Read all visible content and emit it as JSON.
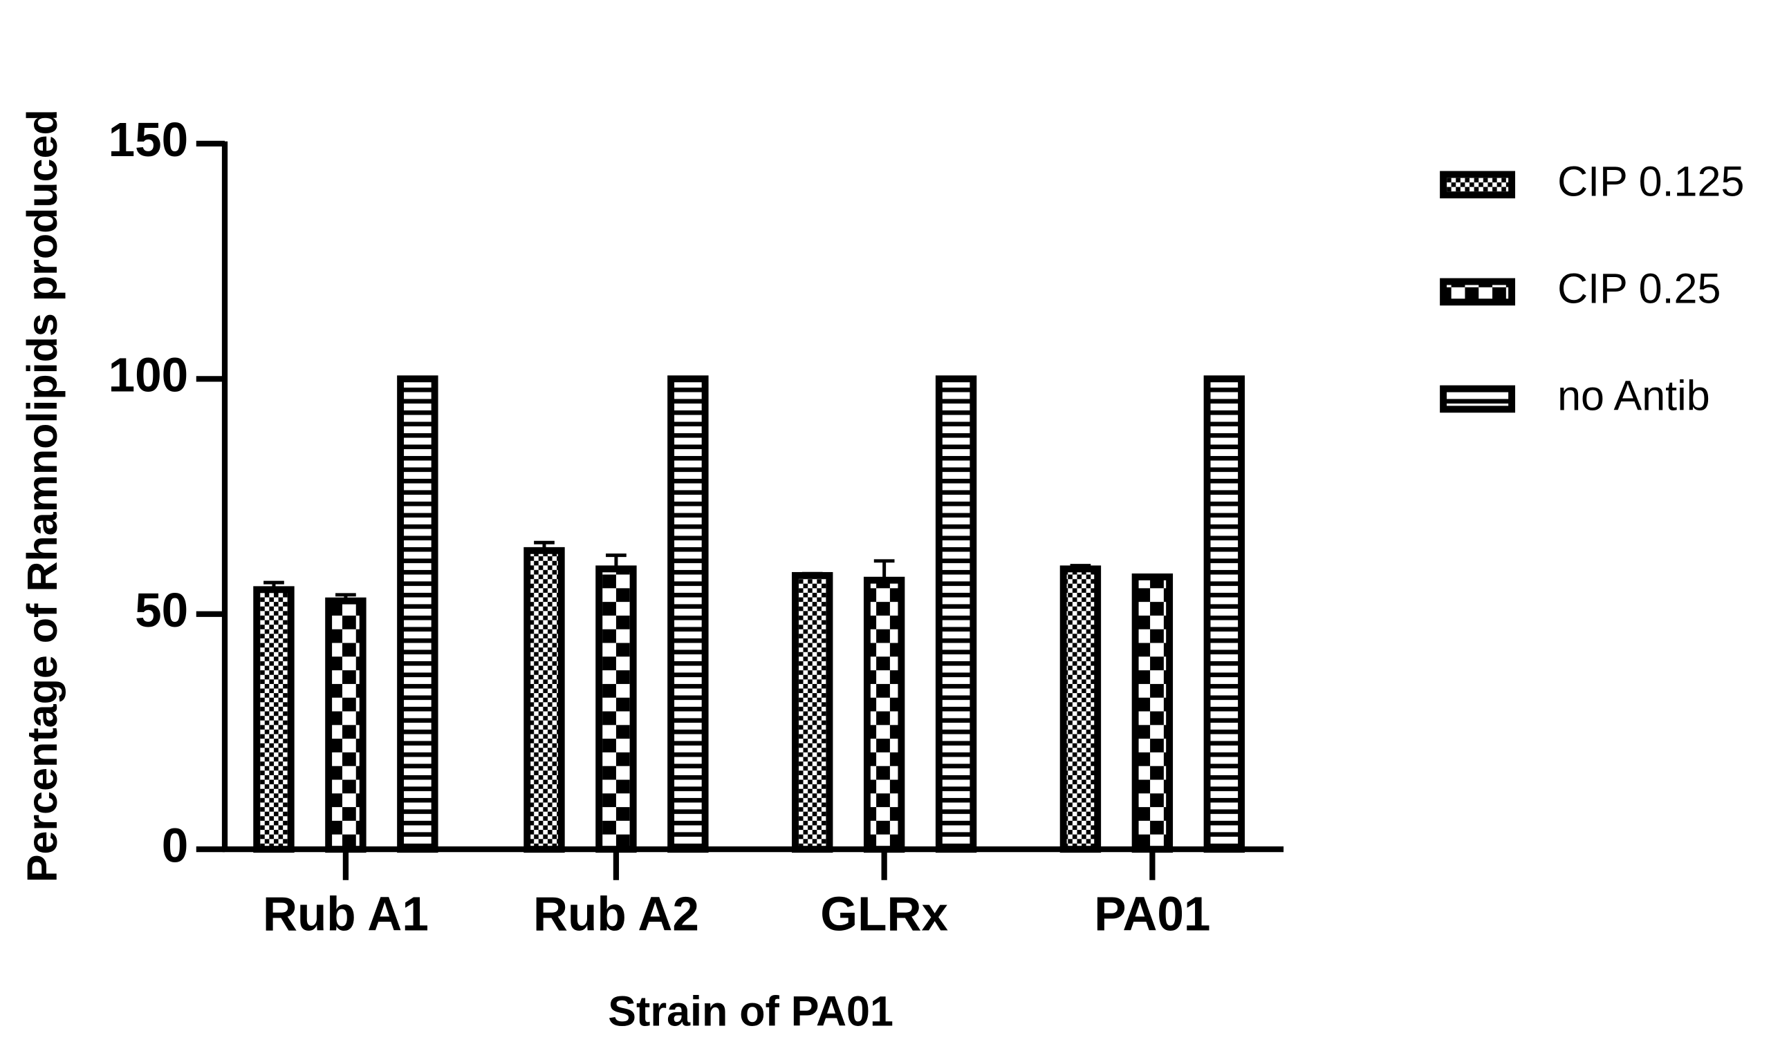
{
  "chart_data": {
    "type": "bar",
    "x_label": "Strain of PA01",
    "y_label": "Percentage of Rhamnolipids produced",
    "categories": [
      "Rub A1",
      "Rub A2",
      "GLRx",
      "PA01"
    ],
    "series": [
      {
        "name": "CIP 0.125",
        "color": "#000000",
        "pattern": "fine-checker",
        "values": [
          55.2,
          63.5,
          58.2,
          59.6
        ],
        "errors": [
          1.5,
          1.7,
          0.4,
          0.7
        ]
      },
      {
        "name": "CIP 0.25",
        "color": "#000000",
        "pattern": "checker",
        "values": [
          52.8,
          59.6,
          57.2,
          57.9
        ],
        "errors": [
          1.3,
          2.9,
          4.1,
          0.3
        ]
      },
      {
        "name": "no Antib",
        "color": "#000000",
        "pattern": "horizontal-stripes",
        "values": [
          100,
          100,
          100,
          100
        ],
        "errors": [
          0,
          0,
          0,
          0
        ]
      }
    ],
    "ylim": [
      0,
      150
    ],
    "yticks": [
      0,
      50,
      100,
      150
    ],
    "legend": "right"
  }
}
